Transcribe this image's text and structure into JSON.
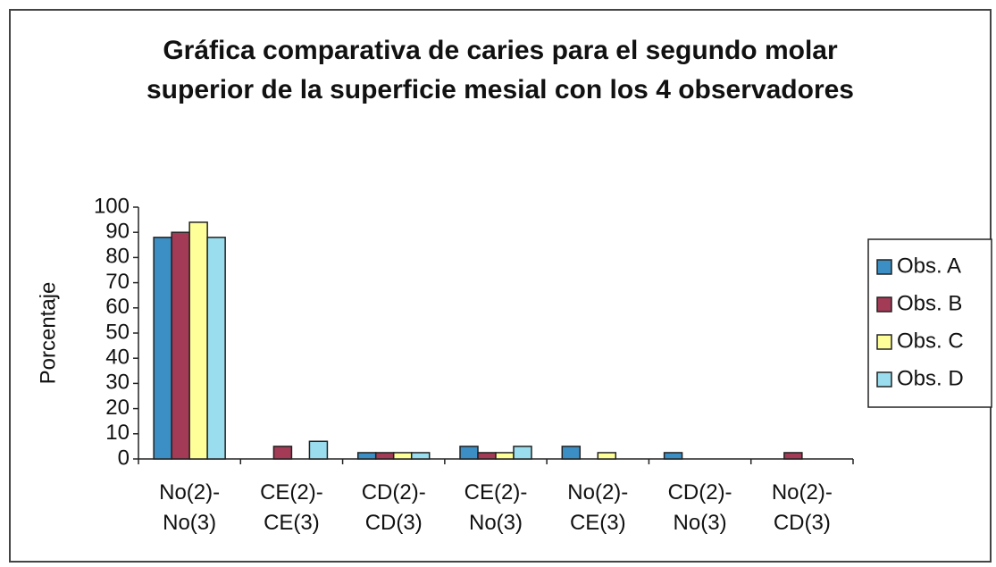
{
  "chart_data": {
    "type": "bar",
    "title": "Gráfica comparativa de caries para el segundo molar superior de la superficie mesial con los 4 observadores",
    "y_label": "Porcentaje",
    "categories": [
      "No(2)-No(3)",
      "CE(2)-CE(3)",
      "CD(2)-CD(3)",
      "CE(2)-No(3)",
      "No(2)-CE(3)",
      "CD(2)-No(3)",
      "No(2)-CD(3)"
    ],
    "series": [
      {
        "name": "Obs. A",
        "color": "#3c8fc4",
        "values": [
          88,
          0,
          2.5,
          5,
          5,
          2.5,
          0
        ]
      },
      {
        "name": "Obs. B",
        "color": "#a33b56",
        "values": [
          90,
          5,
          2.5,
          2.5,
          0,
          0,
          2.5
        ]
      },
      {
        "name": "Obs. C",
        "color": "#ffff99",
        "values": [
          94,
          0,
          2.5,
          2.5,
          2.5,
          0,
          0
        ]
      },
      {
        "name": "Obs. D",
        "color": "#99ddee",
        "values": [
          88,
          7,
          2.5,
          5,
          0,
          0,
          0
        ]
      }
    ],
    "ylim": [
      0,
      100
    ],
    "yticks": [
      0,
      10,
      20,
      30,
      40,
      50,
      60,
      70,
      80,
      90,
      100
    ],
    "legend": "right"
  }
}
